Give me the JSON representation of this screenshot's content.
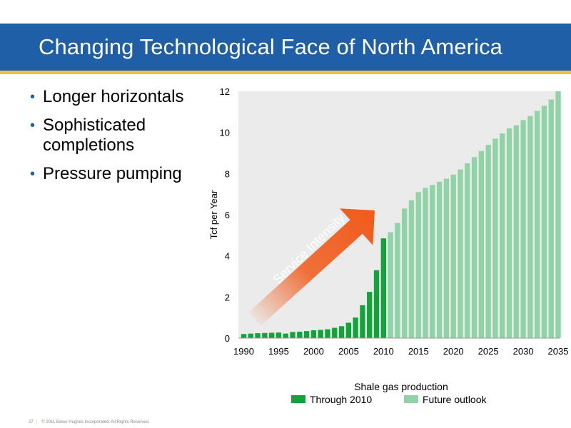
{
  "header": {
    "title": "Changing Technological Face of North America"
  },
  "bullets": [
    {
      "line1": "Longer horizontals",
      "line2": ""
    },
    {
      "line1": "Sophisticated",
      "line2": "completions"
    },
    {
      "line1": "Pressure pumping",
      "line2": ""
    }
  ],
  "footer": {
    "page_number": "27",
    "copyright": "© 2011 Baker Hughes Incorporated. All Rights Reserved."
  },
  "colors": {
    "header_bg": "#1f5fa8",
    "header_stripe": "#f1c232",
    "historical": "#12a33a",
    "future": "#8fd3a6",
    "arrow": "#f05a1a",
    "plot_bg": "#ebebeb"
  },
  "chart_data": {
    "type": "bar",
    "title": "",
    "xlabel": "Shale gas production",
    "ylabel": "Tcf per Year",
    "ylim": [
      0,
      12
    ],
    "yticks": [
      0,
      2,
      4,
      6,
      8,
      10,
      12
    ],
    "xticks": [
      1990,
      1995,
      2000,
      2005,
      2010,
      2015,
      2020,
      2025,
      2030,
      2035
    ],
    "grid": false,
    "legend_position": "bottom",
    "annotation": "Service Intensity",
    "series": [
      {
        "name": "Through 2010",
        "color": "#12a33a",
        "x": [
          1990,
          1991,
          1992,
          1993,
          1994,
          1995,
          1996,
          1997,
          1998,
          1999,
          2000,
          2001,
          2002,
          2003,
          2004,
          2005,
          2006,
          2007,
          2008,
          2009,
          2010
        ],
        "values": [
          0.2,
          0.22,
          0.24,
          0.25,
          0.26,
          0.27,
          0.22,
          0.3,
          0.31,
          0.34,
          0.38,
          0.4,
          0.43,
          0.5,
          0.58,
          0.75,
          1.0,
          1.6,
          2.25,
          3.3,
          4.85
        ]
      },
      {
        "name": "Future outlook",
        "color": "#8fd3a6",
        "x": [
          2011,
          2012,
          2013,
          2014,
          2015,
          2016,
          2017,
          2018,
          2019,
          2020,
          2021,
          2022,
          2023,
          2024,
          2025,
          2026,
          2027,
          2028,
          2029,
          2030,
          2031,
          2032,
          2033,
          2034,
          2035
        ],
        "values": [
          5.15,
          5.6,
          6.3,
          6.7,
          7.1,
          7.3,
          7.45,
          7.6,
          7.75,
          7.95,
          8.2,
          8.5,
          8.8,
          9.1,
          9.4,
          9.7,
          9.95,
          10.2,
          10.35,
          10.6,
          10.8,
          11.05,
          11.3,
          11.6,
          12.0
        ]
      }
    ]
  }
}
